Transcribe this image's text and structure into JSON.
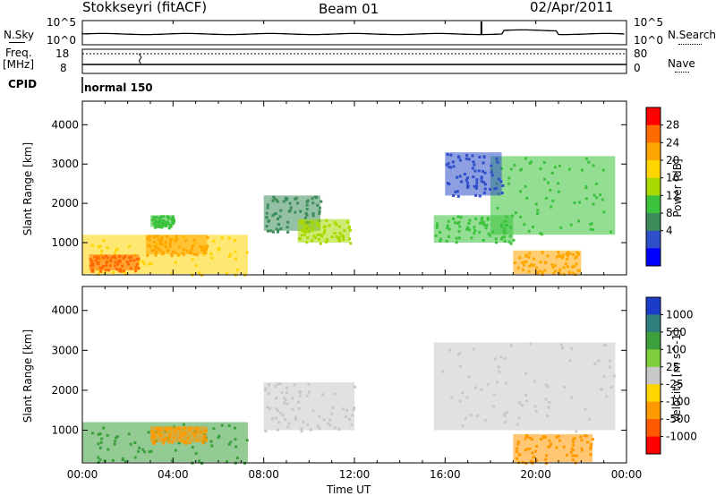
{
  "header": {
    "station": "Stokkseyri (fitACF)",
    "beam": "Beam 01",
    "date": "02/Apr/2011"
  },
  "noise_panel": {
    "left_label": "N.Sky",
    "right_label": "N.Search",
    "left_ticks": [
      "10^5",
      "10^0"
    ],
    "right_ticks": [
      "10^5",
      "10^0"
    ]
  },
  "freq_panel": {
    "left_label_1": "Freq.",
    "left_label_2": "[MHz]",
    "right_label": "Nave",
    "left_ticks": [
      "18",
      "8"
    ],
    "right_ticks": [
      "80",
      "0"
    ]
  },
  "cpid_panel": {
    "label": "CPID",
    "program": "normal 150"
  },
  "x_axis": {
    "label": "Time UT",
    "ticks": [
      "00:00",
      "04:00",
      "08:00",
      "12:00",
      "16:00",
      "20:00",
      "00:00"
    ]
  },
  "chart_data": [
    {
      "type": "heatmap",
      "quantity": "Power",
      "colorbar_label": "Power [dB]",
      "ylabel": "Slant Range [km]",
      "xlabel": "Time UT",
      "x_range_hours": [
        0,
        24
      ],
      "ylim_km": [
        180,
        4600
      ],
      "y_ticks": [
        "1000",
        "2000",
        "3000",
        "4000"
      ],
      "colorbar_ticks": [
        "28",
        "24",
        "20",
        "16",
        "12",
        "8",
        "4"
      ],
      "colorbar_colors": [
        "#ff0000",
        "#ff6a00",
        "#ffa500",
        "#ffd400",
        "#a8d800",
        "#3cc23c",
        "#3c8c5a",
        "#2f4fc8",
        "#0000ff"
      ],
      "echo_regions": [
        {
          "t_start": 0.0,
          "t_end": 7.3,
          "range_min": 200,
          "range_max": 1200,
          "power_db": 20
        },
        {
          "t_start": 0.3,
          "t_end": 2.5,
          "range_min": 300,
          "range_max": 700,
          "power_db": 28
        },
        {
          "t_start": 2.8,
          "t_end": 5.5,
          "range_min": 700,
          "range_max": 1200,
          "power_db": 24
        },
        {
          "t_start": 3.0,
          "t_end": 4.0,
          "range_min": 1400,
          "range_max": 1700,
          "power_db": 12
        },
        {
          "t_start": 8.0,
          "t_end": 10.5,
          "range_min": 1300,
          "range_max": 2200,
          "power_db": 10
        },
        {
          "t_start": 9.5,
          "t_end": 11.8,
          "range_min": 1000,
          "range_max": 1600,
          "power_db": 16
        },
        {
          "t_start": 15.5,
          "t_end": 19.0,
          "range_min": 1000,
          "range_max": 1700,
          "power_db": 14
        },
        {
          "t_start": 18.0,
          "t_end": 23.5,
          "range_min": 1200,
          "range_max": 3200,
          "power_db": 12
        },
        {
          "t_start": 19.0,
          "t_end": 22.0,
          "range_min": 200,
          "range_max": 800,
          "power_db": 24
        },
        {
          "t_start": 16.0,
          "t_end": 18.5,
          "range_min": 2200,
          "range_max": 3300,
          "power_db": 6
        }
      ]
    },
    {
      "type": "heatmap",
      "quantity": "Velocity",
      "colorbar_label": "Velocity [m s^-1]",
      "ylabel": "Slant Range [km]",
      "xlabel": "Time UT",
      "x_range_hours": [
        0,
        24
      ],
      "ylim_km": [
        180,
        4600
      ],
      "y_ticks": [
        "1000",
        "2000",
        "3000",
        "4000"
      ],
      "colorbar_ticks": [
        "1000",
        "500",
        "100",
        "25",
        "-25",
        "-100",
        "-500",
        "-1000"
      ],
      "colorbar_colors": [
        "#1a3cc8",
        "#2f7f7f",
        "#3ca03c",
        "#7fcf3c",
        "#c8c8c8",
        "#ffd400",
        "#ff9900",
        "#ff5a00",
        "#ff0000"
      ],
      "echo_regions": [
        {
          "t_start": 0.0,
          "t_end": 7.3,
          "range_min": 200,
          "range_max": 1200,
          "velocity_ms": 200
        },
        {
          "t_start": 3.0,
          "t_end": 5.5,
          "range_min": 700,
          "range_max": 1100,
          "velocity_ms": -100
        },
        {
          "t_start": 8.0,
          "t_end": 12.0,
          "range_min": 1000,
          "range_max": 2200,
          "velocity_ms": 0
        },
        {
          "t_start": 15.5,
          "t_end": 23.5,
          "range_min": 1000,
          "range_max": 3200,
          "velocity_ms": 0
        },
        {
          "t_start": 19.0,
          "t_end": 22.5,
          "range_min": 200,
          "range_max": 900,
          "velocity_ms": -300
        }
      ]
    }
  ]
}
